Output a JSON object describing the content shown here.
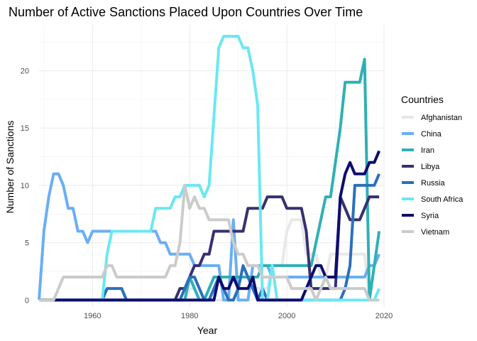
{
  "chart_data": {
    "type": "line",
    "title": "Number of Active Sanctions Placed Upon Countries Over Time",
    "xlabel": "Year",
    "ylabel": "Number of Sanctions",
    "xlim": [
      1949,
      2020
    ],
    "ylim": [
      -0.6,
      24
    ],
    "xticks": [
      1960,
      1980,
      2000,
      2020
    ],
    "yticks": [
      0,
      5,
      10,
      15,
      20
    ],
    "grid": true,
    "legend": {
      "title": "Countries",
      "position": "right"
    },
    "series": [
      {
        "name": "Afghanistan",
        "color": "#e8e8e8",
        "points": [
          [
            1949,
            0
          ],
          [
            1979,
            0
          ],
          [
            1980,
            1
          ],
          [
            1981,
            1
          ],
          [
            1982,
            0
          ],
          [
            1989,
            0
          ],
          [
            1990,
            1
          ],
          [
            1996,
            1
          ],
          [
            1997,
            3
          ],
          [
            1999,
            3
          ],
          [
            2000,
            6
          ],
          [
            2001,
            7
          ],
          [
            2003,
            7
          ],
          [
            2004,
            4
          ],
          [
            2006,
            4
          ],
          [
            2007,
            2
          ],
          [
            2008,
            2
          ],
          [
            2009,
            4
          ],
          [
            2016,
            4
          ],
          [
            2017,
            0
          ],
          [
            2019,
            0
          ]
        ]
      },
      {
        "name": "China",
        "color": "#6aaef5",
        "points": [
          [
            1949,
            0
          ],
          [
            1950,
            6
          ],
          [
            1951,
            9
          ],
          [
            1952,
            11
          ],
          [
            1953,
            11
          ],
          [
            1954,
            10
          ],
          [
            1955,
            8
          ],
          [
            1956,
            8
          ],
          [
            1957,
            6
          ],
          [
            1958,
            6
          ],
          [
            1959,
            5
          ],
          [
            1960,
            6
          ],
          [
            1973,
            6
          ],
          [
            1974,
            5
          ],
          [
            1975,
            5
          ],
          [
            1976,
            4
          ],
          [
            1980,
            4
          ],
          [
            1981,
            3
          ],
          [
            1986,
            3
          ],
          [
            1987,
            0
          ],
          [
            1988,
            0
          ],
          [
            1989,
            7
          ],
          [
            1990,
            0
          ],
          [
            1992,
            0
          ],
          [
            1993,
            3
          ],
          [
            1996,
            3
          ],
          [
            1997,
            2
          ],
          [
            2016,
            2
          ],
          [
            2017,
            3
          ],
          [
            2018,
            3
          ],
          [
            2019,
            4
          ]
        ]
      },
      {
        "name": "Iran",
        "color": "#2eb0b5",
        "points": [
          [
            1949,
            0
          ],
          [
            1979,
            0
          ],
          [
            1980,
            2
          ],
          [
            1981,
            1
          ],
          [
            1982,
            0
          ],
          [
            1983,
            0
          ],
          [
            1984,
            1
          ],
          [
            1985,
            2
          ],
          [
            1994,
            2
          ],
          [
            1995,
            3
          ],
          [
            2005,
            3
          ],
          [
            2006,
            5
          ],
          [
            2007,
            7
          ],
          [
            2008,
            9
          ],
          [
            2009,
            9
          ],
          [
            2010,
            12
          ],
          [
            2011,
            15
          ],
          [
            2012,
            19
          ],
          [
            2015,
            19
          ],
          [
            2016,
            21
          ],
          [
            2017,
            0
          ],
          [
            2018,
            3
          ],
          [
            2019,
            6
          ]
        ]
      },
      {
        "name": "Libya",
        "color": "#363071",
        "points": [
          [
            1949,
            0
          ],
          [
            1977,
            0
          ],
          [
            1978,
            1
          ],
          [
            1979,
            1
          ],
          [
            1980,
            2
          ],
          [
            1981,
            3
          ],
          [
            1982,
            3
          ],
          [
            1983,
            4
          ],
          [
            1984,
            4
          ],
          [
            1985,
            6
          ],
          [
            1991,
            6
          ],
          [
            1992,
            8
          ],
          [
            1995,
            8
          ],
          [
            1996,
            9
          ],
          [
            1999,
            9
          ],
          [
            2000,
            8
          ],
          [
            2003,
            8
          ],
          [
            2004,
            6
          ],
          [
            2005,
            1
          ],
          [
            2010,
            1
          ],
          [
            2011,
            9
          ],
          [
            2012,
            8
          ],
          [
            2013,
            7
          ],
          [
            2015,
            7
          ],
          [
            2016,
            8
          ],
          [
            2017,
            9
          ],
          [
            2019,
            9
          ]
        ]
      },
      {
        "name": "Russia",
        "color": "#2c6fbc",
        "points": [
          [
            1949,
            0
          ],
          [
            1962,
            0
          ],
          [
            1963,
            1
          ],
          [
            1966,
            1
          ],
          [
            1967,
            0
          ],
          [
            1978,
            0
          ],
          [
            1979,
            1
          ],
          [
            1980,
            2
          ],
          [
            1981,
            2
          ],
          [
            1982,
            1
          ],
          [
            1983,
            0
          ],
          [
            1984,
            0
          ],
          [
            1985,
            1
          ],
          [
            1986,
            2
          ],
          [
            1987,
            1
          ],
          [
            1988,
            0
          ],
          [
            1989,
            0
          ],
          [
            1990,
            1
          ],
          [
            1991,
            3
          ],
          [
            1992,
            2
          ],
          [
            1993,
            1
          ],
          [
            1994,
            0
          ],
          [
            1995,
            1
          ],
          [
            1996,
            0
          ],
          [
            2011,
            0
          ],
          [
            2012,
            1
          ],
          [
            2013,
            3
          ],
          [
            2014,
            10
          ],
          [
            2018,
            10
          ],
          [
            2019,
            11
          ]
        ]
      },
      {
        "name": "South Africa",
        "color": "#6ae8f3",
        "points": [
          [
            1949,
            0
          ],
          [
            1962,
            0
          ],
          [
            1963,
            4
          ],
          [
            1964,
            6
          ],
          [
            1972,
            6
          ],
          [
            1973,
            8
          ],
          [
            1976,
            8
          ],
          [
            1977,
            9
          ],
          [
            1978,
            9
          ],
          [
            1979,
            10
          ],
          [
            1982,
            10
          ],
          [
            1983,
            9
          ],
          [
            1984,
            10
          ],
          [
            1985,
            16
          ],
          [
            1986,
            22
          ],
          [
            1987,
            23
          ],
          [
            1990,
            23
          ],
          [
            1991,
            22
          ],
          [
            1992,
            22
          ],
          [
            1993,
            20
          ],
          [
            1994,
            17
          ],
          [
            1995,
            0
          ],
          [
            1996,
            0
          ],
          [
            1997,
            3
          ],
          [
            1998,
            0
          ],
          [
            2018,
            0
          ],
          [
            2019,
            1
          ]
        ]
      },
      {
        "name": "Syria",
        "color": "#0d0d6f",
        "points": [
          [
            1949,
            0
          ],
          [
            1985,
            0
          ],
          [
            1986,
            2
          ],
          [
            1987,
            1
          ],
          [
            1988,
            1
          ],
          [
            1989,
            2
          ],
          [
            1990,
            1
          ],
          [
            1992,
            1
          ],
          [
            1993,
            2
          ],
          [
            1994,
            0
          ],
          [
            2003,
            0
          ],
          [
            2004,
            1
          ],
          [
            2005,
            2
          ],
          [
            2006,
            3
          ],
          [
            2007,
            3
          ],
          [
            2008,
            2
          ],
          [
            2010,
            2
          ],
          [
            2011,
            9
          ],
          [
            2012,
            11
          ],
          [
            2013,
            12
          ],
          [
            2014,
            11
          ],
          [
            2016,
            11
          ],
          [
            2017,
            12
          ],
          [
            2018,
            12
          ],
          [
            2019,
            13
          ]
        ]
      },
      {
        "name": "Vietnam",
        "color": "#cbcbcb",
        "points": [
          [
            1949,
            0
          ],
          [
            1952,
            0
          ],
          [
            1953,
            1
          ],
          [
            1954,
            2
          ],
          [
            1962,
            2
          ],
          [
            1963,
            3
          ],
          [
            1964,
            3
          ],
          [
            1965,
            2
          ],
          [
            1975,
            2
          ],
          [
            1976,
            3
          ],
          [
            1977,
            3
          ],
          [
            1978,
            5
          ],
          [
            1979,
            10
          ],
          [
            1980,
            8
          ],
          [
            1981,
            9
          ],
          [
            1982,
            8
          ],
          [
            1983,
            8
          ],
          [
            1984,
            7
          ],
          [
            1988,
            7
          ],
          [
            1989,
            5
          ],
          [
            1990,
            4
          ],
          [
            1991,
            4
          ],
          [
            1992,
            3
          ],
          [
            1994,
            3
          ],
          [
            1995,
            2
          ],
          [
            2000,
            2
          ],
          [
            2001,
            1
          ],
          [
            2005,
            1
          ],
          [
            2006,
            0
          ],
          [
            2007,
            1
          ],
          [
            2008,
            2
          ],
          [
            2009,
            1
          ],
          [
            2016,
            1
          ],
          [
            2017,
            0
          ],
          [
            2019,
            0
          ]
        ]
      }
    ]
  }
}
